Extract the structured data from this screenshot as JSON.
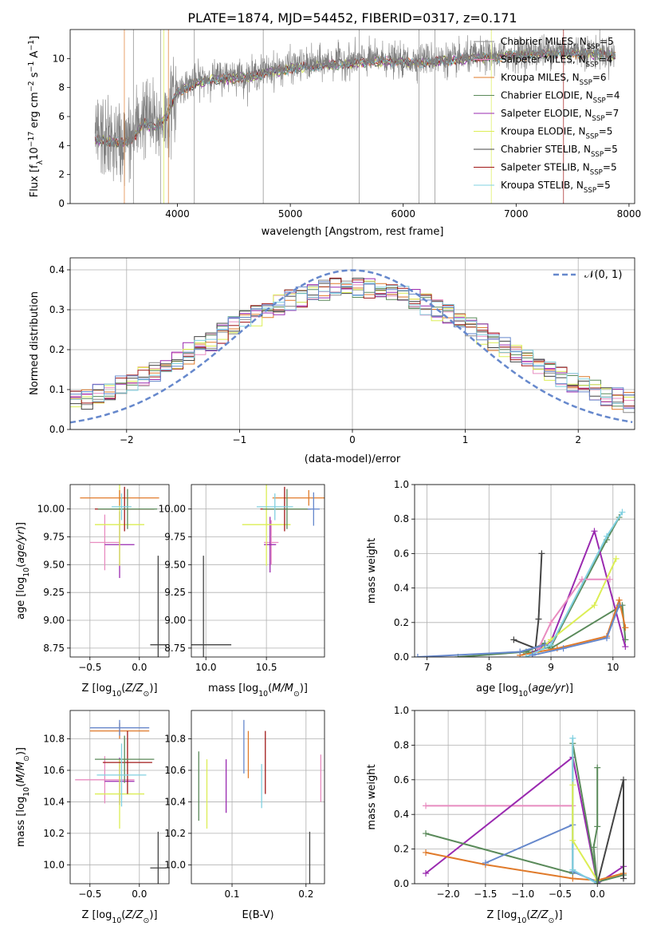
{
  "figure": {
    "title": "PLATE=1874, MJD=54452, FIBERID=0317, z=0.171",
    "models": [
      {
        "name": "Chabrier MILES",
        "nssp": "5",
        "color": "#8a8a8a"
      },
      {
        "name": "Salpeter MILES",
        "nssp": "4",
        "color": "#e88cc0"
      },
      {
        "name": "Kroupa MILES",
        "nssp": "6",
        "color": "#e07a2a"
      },
      {
        "name": "Chabrier ELODIE",
        "nssp": "4",
        "color": "#5a8a5a"
      },
      {
        "name": "Salpeter ELODIE",
        "nssp": "7",
        "color": "#9a2ab0"
      },
      {
        "name": "Kroupa ELODIE",
        "nssp": "5",
        "color": "#dcee55"
      },
      {
        "name": "Chabrier STELIB",
        "nssp": "5",
        "color": "#444444"
      },
      {
        "name": "Salpeter STELIB",
        "nssp": "5",
        "color": "#a01818"
      },
      {
        "name": "Kroupa STELIB",
        "nssp": "5",
        "color": "#80d0e0"
      }
    ],
    "blue_color": "#6688cc"
  },
  "chart_data": [
    {
      "id": "spectrum",
      "type": "line",
      "xlabel": "wavelength [Angstrom, rest frame]",
      "ylabel": "Flux [f_λ10^-17 erg cm^-2 s^-1 A^-1]",
      "xlim": [
        3050,
        8050
      ],
      "ylim": [
        0,
        12
      ],
      "xticks": [
        4000,
        5000,
        6000,
        7000,
        8000
      ],
      "yticks": [
        0,
        2,
        4,
        6,
        8,
        10
      ],
      "data_x": [
        3270,
        3300,
        3400,
        3500,
        3600,
        3700,
        3800,
        3900,
        4000,
        4100,
        4200,
        4300,
        4400,
        4500,
        4600,
        4700,
        4800,
        4900,
        5000,
        5200,
        5400,
        5600,
        5800,
        6000,
        6200,
        6400,
        6600,
        6800,
        7000,
        7200,
        7400,
        7600,
        7800,
        7880
      ],
      "data_y": [
        4.5,
        4.8,
        4.3,
        4.2,
        4.6,
        6.2,
        5.4,
        5.8,
        7.8,
        8.3,
        8.6,
        8.7,
        8.8,
        9.0,
        8.7,
        9.0,
        9.2,
        9.3,
        9.5,
        9.6,
        9.8,
        9.9,
        10.0,
        9.8,
        10.0,
        9.9,
        10.1,
        10.2,
        10.3,
        10.5,
        10.6,
        10.5,
        10.4,
        10.3
      ],
      "model_x": [
        3270,
        3400,
        3500,
        3600,
        3700,
        3800,
        3900,
        4000,
        4200,
        4400,
        4600,
        4800,
        5000,
        5400,
        5800,
        6200,
        6600,
        7000,
        7400,
        7800,
        7880
      ],
      "model_y": [
        4.4,
        4.3,
        4.2,
        4.4,
        5.6,
        5.2,
        5.9,
        7.7,
        8.4,
        8.6,
        8.7,
        9.0,
        9.3,
        9.6,
        9.8,
        9.7,
        10.0,
        10.2,
        10.4,
        10.3,
        10.2
      ],
      "legend_position": "upper right"
    },
    {
      "id": "residuals",
      "type": "histogram",
      "xlabel": "(data-model)/error",
      "ylabel": "Normed distribution",
      "xlim": [
        -2.5,
        2.5
      ],
      "ylim": [
        0,
        0.43
      ],
      "xticks": [
        -2,
        -1,
        0,
        1,
        2
      ],
      "yticks": [
        0.0,
        0.1,
        0.2,
        0.3,
        0.4
      ],
      "bin_width": 0.1,
      "reference_curve": "N(0,1)",
      "legend_label": "𝒩(0, 1)",
      "grid": true
    },
    {
      "id": "age-vs-Z",
      "type": "errorbar",
      "xlabel": "Z [log10(Z/Z⊙)]",
      "ylabel": "age  [log10(age/yr)]",
      "xlim": [
        -0.7,
        0.3
      ],
      "ylim": [
        8.67,
        10.22
      ],
      "xticks": [
        -0.5,
        0.0
      ],
      "yticks": [
        8.75,
        9.0,
        9.25,
        9.5,
        9.75,
        10.0
      ],
      "points": [
        {
          "x": 0.19,
          "xerr": 0.08,
          "y": 8.78,
          "yerr": 0.8,
          "color": "#444444"
        },
        {
          "x": -0.35,
          "xerr": 0.15,
          "y": 9.7,
          "yerr": 0.25,
          "color": "#e88cc0"
        },
        {
          "x": -0.2,
          "xerr": 0.15,
          "y": 9.68,
          "yerr": 0.3,
          "color": "#9a2ab0"
        },
        {
          "x": -0.2,
          "xerr": 0.25,
          "y": 9.86,
          "yerr": 0.37,
          "color": "#dcee55"
        },
        {
          "x": -0.2,
          "xerr": 0.4,
          "y": 10.1,
          "yerr": 0.07,
          "color": "#e07a2a"
        },
        {
          "x": -0.15,
          "xerr": 0.3,
          "y": 10.0,
          "yerr": 0.2,
          "color": "#a01818"
        },
        {
          "x": -0.12,
          "xerr": 0.3,
          "y": 10.0,
          "yerr": 0.18,
          "color": "#5a8a5a"
        },
        {
          "x": -0.18,
          "xerr": 0.1,
          "y": 10.02,
          "yerr": 0.12,
          "color": "#80d0e0"
        }
      ]
    },
    {
      "id": "age-vs-mass",
      "type": "errorbar",
      "xlabel": "mass [log10(M/M⊙)]",
      "ylabel": "",
      "xlim": [
        9.88,
        10.98
      ],
      "ylim": [
        8.67,
        10.22
      ],
      "xticks": [
        10.0,
        10.5
      ],
      "yticks": [
        8.75,
        9.0,
        9.25,
        9.5,
        9.75,
        10.0
      ],
      "points": [
        {
          "x": 9.98,
          "xerr": 0.23,
          "y": 8.78,
          "yerr": 0.8,
          "color": "#444444"
        },
        {
          "x": 10.54,
          "xerr": 0.06,
          "y": 9.7,
          "yerr": 0.2,
          "color": "#e88cc0"
        },
        {
          "x": 10.53,
          "xerr": 0.05,
          "y": 9.68,
          "yerr": 0.25,
          "color": "#9a2ab0"
        },
        {
          "x": 10.5,
          "xerr": 0.2,
          "y": 9.86,
          "yerr": 0.37,
          "color": "#dcee55"
        },
        {
          "x": 10.85,
          "xerr": 0.3,
          "y": 10.1,
          "yerr": 0.07,
          "color": "#e07a2a"
        },
        {
          "x": 10.65,
          "xerr": 0.2,
          "y": 10.0,
          "yerr": 0.2,
          "color": "#a01818"
        },
        {
          "x": 10.67,
          "xerr": 0.2,
          "y": 10.0,
          "yerr": 0.18,
          "color": "#5a8a5a"
        },
        {
          "x": 10.57,
          "xerr": 0.15,
          "y": 10.02,
          "yerr": 0.12,
          "color": "#80d0e0"
        },
        {
          "x": 10.89,
          "xerr": 0.05,
          "y": 10.0,
          "yerr": 0.15,
          "color": "#6688cc"
        }
      ]
    },
    {
      "id": "mass-weight-vs-age",
      "type": "line",
      "xlabel": "age  [log10(age/yr)]",
      "ylabel": "mass weight",
      "xlim": [
        6.8,
        10.35
      ],
      "ylim": [
        0,
        1.0
      ],
      "xticks": [
        7,
        8,
        9,
        10
      ],
      "yticks": [
        0.0,
        0.2,
        0.4,
        0.6,
        0.8,
        1.0
      ],
      "series": [
        {
          "x": [
            8.4,
            8.75,
            8.8,
            8.85
          ],
          "y": [
            0.1,
            0.05,
            0.22,
            0.6
          ],
          "color": "#444444"
        },
        {
          "x": [
            7.5,
            8.6,
            8.9,
            9.0,
            10.15,
            10.2
          ],
          "y": [
            0.0,
            0.03,
            0.08,
            0.05,
            0.3,
            0.1
          ],
          "color": "#5a8a5a"
        },
        {
          "x": [
            8.6,
            9.0,
            9.9,
            10.1
          ],
          "y": [
            0.02,
            0.06,
            0.68,
            0.81
          ],
          "color": "#5a8a5a"
        },
        {
          "x": [
            8.7,
            9.0,
            9.7,
            10.2
          ],
          "y": [
            0.02,
            0.09,
            0.73,
            0.06
          ],
          "color": "#9a2ab0"
        },
        {
          "x": [
            8.8,
            9.0,
            9.7,
            10.05
          ],
          "y": [
            0.03,
            0.1,
            0.3,
            0.57
          ],
          "color": "#dcee55"
        },
        {
          "x": [
            8.8,
            9.0,
            9.5,
            9.95
          ],
          "y": [
            0.05,
            0.2,
            0.45,
            0.45
          ],
          "color": "#e88cc0"
        },
        {
          "x": [
            8.5,
            9.1,
            9.9,
            10.1,
            10.2
          ],
          "y": [
            0.01,
            0.05,
            0.12,
            0.33,
            0.17
          ],
          "color": "#e07a2a"
        },
        {
          "x": [
            8.6,
            9.0,
            9.9,
            10.15
          ],
          "y": [
            0.0,
            0.07,
            0.7,
            0.84
          ],
          "color": "#80d0e0"
        },
        {
          "x": [
            8.7,
            9.2,
            9.9,
            10.1
          ],
          "y": [
            0.01,
            0.05,
            0.11,
            0.3
          ],
          "color": "#6688cc"
        },
        {
          "x": [
            6.85,
            8.5,
            8.9
          ],
          "y": [
            0.0,
            0.03,
            0.07
          ],
          "color": "#6688cc"
        }
      ]
    },
    {
      "id": "mass-vs-Z",
      "type": "errorbar",
      "xlabel": "Z [log10(Z/Z⊙)]",
      "ylabel": "mass [log10(M/M⊙)]",
      "xlim": [
        -0.7,
        0.3
      ],
      "ylim": [
        9.88,
        10.98
      ],
      "xticks": [
        -0.5,
        0.0
      ],
      "yticks": [
        10.0,
        10.2,
        10.4,
        10.6,
        10.8
      ],
      "points": [
        {
          "x": 0.19,
          "xerr": 0.08,
          "y": 9.98,
          "yerr": 0.23,
          "color": "#444444"
        },
        {
          "x": -0.35,
          "xerr": 0.3,
          "y": 10.54,
          "yerr": 0.15,
          "color": "#e88cc0"
        },
        {
          "x": -0.2,
          "xerr": 0.15,
          "y": 10.53,
          "yerr": 0.15,
          "color": "#9a2ab0"
        },
        {
          "x": -0.2,
          "xerr": 0.25,
          "y": 10.45,
          "yerr": 0.22,
          "color": "#dcee55"
        },
        {
          "x": -0.2,
          "xerr": 0.3,
          "y": 10.85,
          "yerr": 0.05,
          "color": "#e07a2a"
        },
        {
          "x": -0.12,
          "xerr": 0.25,
          "y": 10.65,
          "yerr": 0.2,
          "color": "#a01818"
        },
        {
          "x": -0.15,
          "xerr": 0.3,
          "y": 10.67,
          "yerr": 0.15,
          "color": "#5a8a5a"
        },
        {
          "x": -0.18,
          "xerr": 0.25,
          "y": 10.57,
          "yerr": 0.2,
          "color": "#80d0e0"
        },
        {
          "x": -0.2,
          "xerr": 0.3,
          "y": 10.87,
          "yerr": 0.05,
          "color": "#6688cc"
        }
      ]
    },
    {
      "id": "mass-vs-EBV",
      "type": "errorbar",
      "xlabel": "E(B-V)",
      "ylabel": "",
      "xlim": [
        0.045,
        0.225
      ],
      "ylim": [
        9.88,
        10.98
      ],
      "xticks": [
        0.1,
        0.2
      ],
      "yticks": [
        10.0,
        10.2,
        10.4,
        10.6,
        10.8
      ],
      "points": [
        {
          "x": 0.055,
          "y": 10.5,
          "yerr": 0.22,
          "color": "#5a8a5a"
        },
        {
          "x": 0.066,
          "y": 10.45,
          "yerr": 0.22,
          "color": "#dcee55"
        },
        {
          "x": 0.092,
          "y": 10.5,
          "yerr": 0.17,
          "color": "#9a2ab0"
        },
        {
          "x": 0.116,
          "y": 10.75,
          "yerr": 0.17,
          "color": "#6688cc"
        },
        {
          "x": 0.122,
          "y": 10.7,
          "yerr": 0.15,
          "color": "#e07a2a"
        },
        {
          "x": 0.14,
          "y": 10.5,
          "yerr": 0.14,
          "color": "#80d0e0"
        },
        {
          "x": 0.145,
          "y": 10.65,
          "yerr": 0.2,
          "color": "#a01818"
        },
        {
          "x": 0.205,
          "y": 9.98,
          "yerr": 0.23,
          "color": "#444444"
        },
        {
          "x": 0.22,
          "y": 10.55,
          "yerr": 0.15,
          "color": "#e88cc0"
        }
      ]
    },
    {
      "id": "mass-weight-vs-Z",
      "type": "line",
      "xlabel": "Z [log10(Z/Z⊙)]",
      "ylabel": "mass weight",
      "xlim": [
        -2.45,
        0.5
      ],
      "ylim": [
        0,
        1.0
      ],
      "xticks": [
        -2.0,
        -1.5,
        -1.0,
        -0.5,
        0.0
      ],
      "yticks": [
        0.0,
        0.2,
        0.4,
        0.6,
        0.8,
        1.0
      ],
      "series": [
        {
          "x": [
            -2.3,
            -0.33
          ],
          "y": [
            0.45,
            0.45
          ],
          "color": "#e88cc0"
        },
        {
          "x": [
            -2.3,
            -0.33,
            0.0,
            0.35
          ],
          "y": [
            0.06,
            0.73,
            0.0,
            0.1
          ],
          "color": "#9a2ab0"
        },
        {
          "x": [
            -2.3,
            -0.33,
            -0.33,
            0.0,
            0.35
          ],
          "y": [
            0.29,
            0.06,
            0.81,
            0.01,
            0.05
          ],
          "color": "#5a8a5a"
        },
        {
          "x": [
            -2.3,
            -1.5,
            -0.33,
            0.0,
            0.35
          ],
          "y": [
            0.18,
            0.11,
            0.03,
            0.02,
            0.06
          ],
          "color": "#e07a2a"
        },
        {
          "x": [
            -1.5,
            -0.33,
            -0.33,
            0.0
          ],
          "y": [
            0.12,
            0.34,
            0.07,
            0.01
          ],
          "color": "#6688cc"
        },
        {
          "x": [
            -0.33,
            -0.33,
            0.0
          ],
          "y": [
            0.84,
            0.08,
            0.0
          ],
          "color": "#80d0e0"
        },
        {
          "x": [
            -0.33,
            -0.33,
            0.0
          ],
          "y": [
            0.57,
            0.25,
            0.02
          ],
          "color": "#dcee55"
        },
        {
          "x": [
            0.0,
            0.35,
            0.35
          ],
          "y": [
            0.0,
            0.6,
            0.03
          ],
          "color": "#444444"
        },
        {
          "x": [
            0.0,
            0.0,
            -0.05,
            0.0
          ],
          "y": [
            0.67,
            0.33,
            0.21,
            0.0
          ],
          "color": "#5a8a5a"
        }
      ]
    }
  ]
}
